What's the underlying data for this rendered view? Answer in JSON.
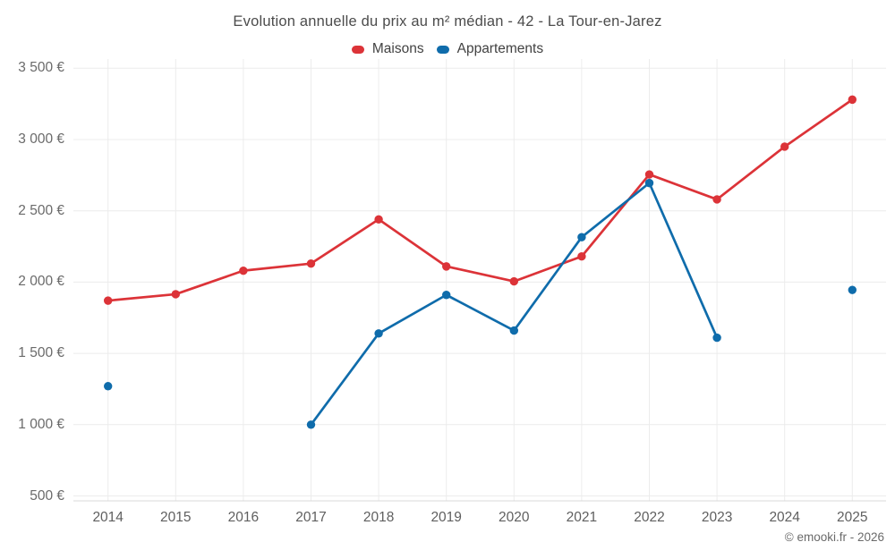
{
  "chart_data": {
    "type": "line",
    "title": "Evolution annuelle du prix au m² médian - 42 - La Tour-en-Jarez",
    "categories": [
      "2014",
      "2015",
      "2016",
      "2017",
      "2018",
      "2019",
      "2020",
      "2021",
      "2022",
      "2023",
      "2024",
      "2025"
    ],
    "series": [
      {
        "name": "Maisons",
        "color": "#dc3338",
        "values": [
          1870,
          1915,
          2080,
          2130,
          2440,
          2110,
          2005,
          2180,
          2755,
          2580,
          2950,
          3280
        ]
      },
      {
        "name": "Appartements",
        "color": "#0f6cab",
        "values": [
          1270,
          null,
          null,
          1000,
          1640,
          1910,
          1660,
          2315,
          2695,
          1610,
          null,
          1945
        ]
      }
    ],
    "y_ticks": [
      500,
      1000,
      1500,
      2000,
      2500,
      3000,
      3500
    ],
    "y_tick_labels": [
      "500 €",
      "1 000 €",
      "1 500 €",
      "2 000 €",
      "2 500 €",
      "3 000 €",
      "3 500 €"
    ],
    "ylim": [
      500,
      3500
    ],
    "grid": true,
    "legend_position": "top"
  },
  "footer": {
    "copyright": "© emooki.fr - 2026"
  }
}
